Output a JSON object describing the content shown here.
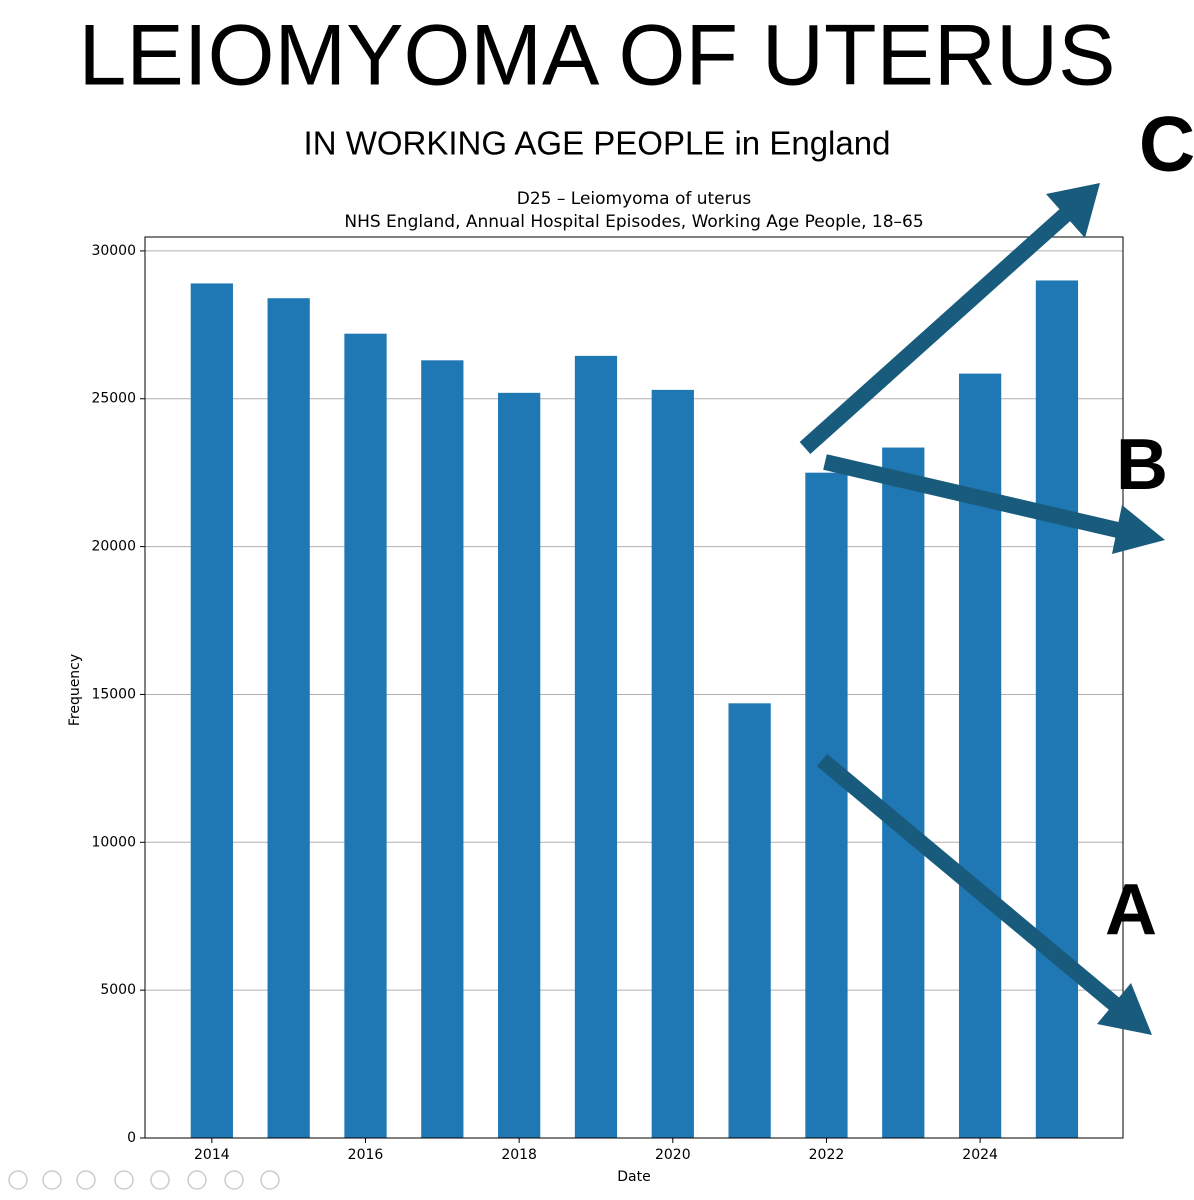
{
  "slide": {
    "title": "LEIOMYOMA OF UTERUS",
    "subtitle": "IN WORKING AGE PEOPLE in England"
  },
  "chart_data": {
    "type": "bar",
    "title": "D25 – Leiomyoma of uterus",
    "subtitle": "NHS England, Annual Hospital Episodes, Working Age People, 18–65",
    "x_label": "Date",
    "y_label": "Frequency",
    "x": [
      2014,
      2015,
      2016,
      2017,
      2018,
      2019,
      2020,
      2021,
      2022,
      2023,
      2024,
      2025
    ],
    "values": [
      28900,
      28400,
      27200,
      26300,
      25200,
      26450,
      25300,
      14700,
      22500,
      23350,
      25850,
      29000
    ],
    "color": "#1f77b4",
    "xlim": [
      2013.13,
      2025.86
    ],
    "xticks": [
      2014,
      2016,
      2018,
      2020,
      2022,
      2024
    ],
    "ylim": [
      0,
      30470
    ],
    "yticks": [
      0,
      5000,
      10000,
      15000,
      20000,
      25000,
      30000
    ],
    "grid": true,
    "annotations": [
      "C",
      "B",
      "A"
    ]
  }
}
